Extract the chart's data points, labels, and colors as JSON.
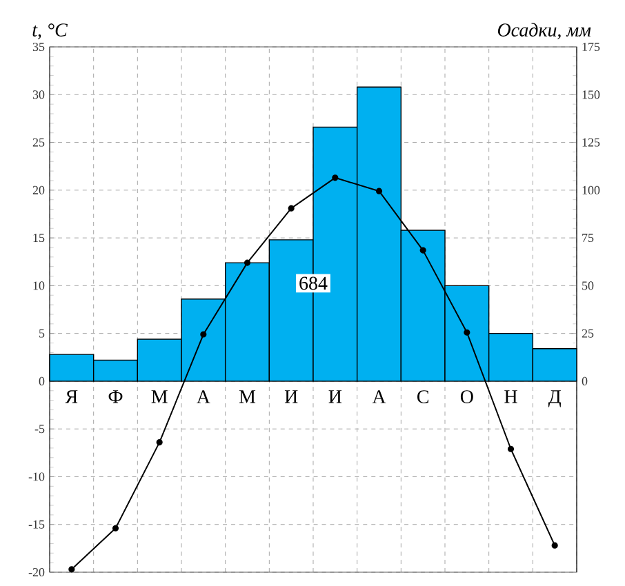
{
  "chart_data": {
    "type": "bar",
    "categories": [
      "Я",
      "Ф",
      "М",
      "А",
      "М",
      "И",
      "И",
      "А",
      "С",
      "О",
      "Н",
      "Д"
    ],
    "ylabel": "t, °C",
    "y2label": "Осадки, мм",
    "series": [
      {
        "axis": "y2",
        "color": "#00b0f0",
        "values": [
          14,
          11,
          22,
          43,
          62,
          74,
          133,
          154,
          79,
          50,
          25,
          17
        ]
      },
      {
        "type": "line",
        "axis": "y",
        "color": "#000000",
        "marker": "circle",
        "line_style": "solid",
        "values": [
          -19.7,
          -15.4,
          -6.4,
          4.9,
          12.4,
          18.1,
          21.3,
          19.9,
          13.7,
          5.1,
          -7.1,
          -17.2
        ]
      }
    ],
    "ylim": [
      -20,
      35
    ],
    "yticks": [
      -20,
      -15,
      -10,
      -5,
      0,
      5,
      10,
      15,
      20,
      25,
      30,
      35
    ],
    "y2lim": [
      -100,
      175
    ],
    "y2ticks": [
      0,
      25,
      50,
      75,
      100,
      125,
      150,
      175
    ],
    "grid": true,
    "annotations": [
      "684"
    ]
  }
}
